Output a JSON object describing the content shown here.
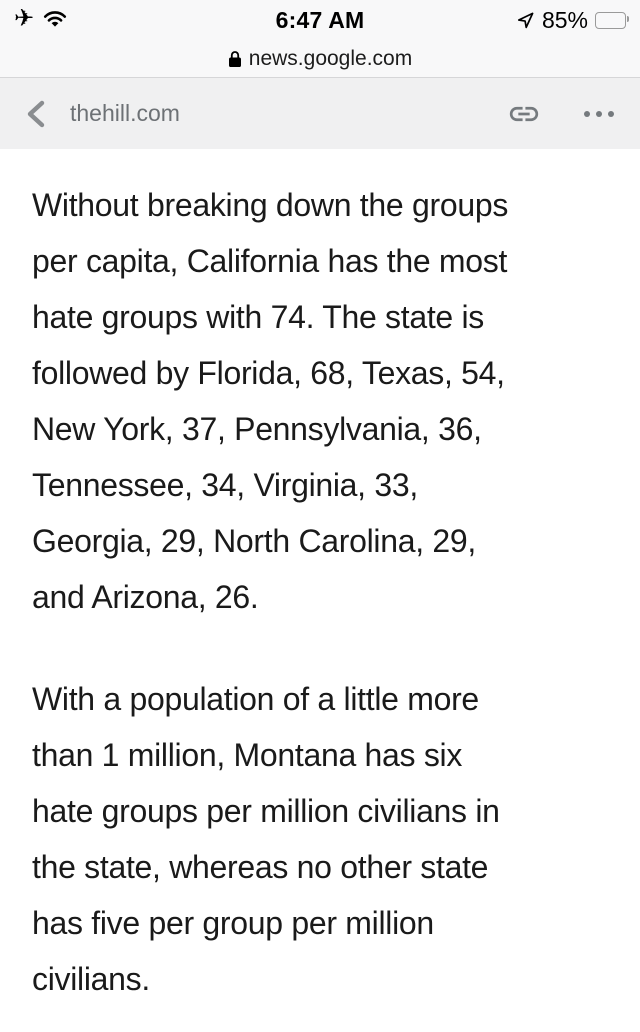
{
  "status_bar": {
    "time": "6:47 AM",
    "battery_percent": "85%",
    "battery_level": 0.85,
    "icons": [
      "airplane-icon",
      "wifi-icon",
      "location-arrow-icon",
      "battery-icon"
    ]
  },
  "url_bar": {
    "domain": "news.google.com",
    "icon": "lock-icon"
  },
  "toolbar": {
    "site": "thehill.com",
    "icons": [
      "back-chevron-icon",
      "link-icon",
      "more-ellipsis-icon"
    ]
  },
  "content": {
    "paragraphs": [
      {
        "lines": [
          "Without breaking down the groups",
          "per capita, California has the most",
          "hate groups with 74. The state is",
          "followed by Florida, 68, Texas, 54,",
          "New York, 37, Pennsylvania, 36,",
          "Tennessee, 34, Virginia, 33,",
          "Georgia, 29, North Carolina, 29,",
          "and Arizona, 26."
        ]
      },
      {
        "lines": [
          "With a population of a little more",
          "than 1 million, Montana has six",
          "hate groups per million civilians in",
          "the state, whereas no other state",
          "has five per group per million",
          "civilians."
        ]
      }
    ]
  },
  "colors": {
    "status_bg": "#f8f8f9",
    "toolbar_bg": "#f0f0f1",
    "toolbar_muted": "#6d7175",
    "text": "#1a1a1a"
  }
}
